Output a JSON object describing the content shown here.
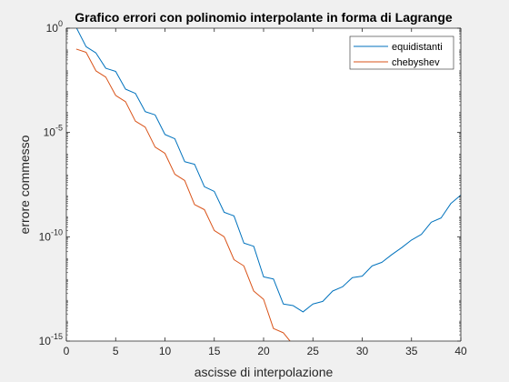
{
  "chart_data": {
    "type": "line",
    "title": "Grafico errori con polinomio interpolante in forma di Lagrange",
    "xlabel": "ascisse di interpolazione",
    "ylabel": "errore commesso",
    "xlim": [
      0,
      40
    ],
    "ylim": [
      1e-15,
      1
    ],
    "yscale": "log",
    "grid": false,
    "legend_location": "top-right",
    "xticks": [
      0,
      5,
      10,
      15,
      20,
      25,
      30,
      35,
      40
    ],
    "xtick_labels": [
      "0",
      "5",
      "10",
      "15",
      "20",
      "25",
      "30",
      "35",
      "40"
    ],
    "yticks": [
      1e-15,
      1e-10,
      1e-05,
      1
    ],
    "ytick_labels": [
      {
        "base": "10",
        "exp": "-15"
      },
      {
        "base": "10",
        "exp": "-10"
      },
      {
        "base": "10",
        "exp": "-5"
      },
      {
        "base": "10",
        "exp": "0"
      }
    ],
    "x": [
      1,
      2,
      3,
      4,
      5,
      6,
      7,
      8,
      9,
      10,
      11,
      12,
      13,
      14,
      15,
      16,
      17,
      18,
      19,
      20,
      21,
      22,
      23,
      24,
      25,
      26,
      27,
      28,
      29,
      30,
      31,
      32,
      33,
      34,
      35,
      36,
      37,
      38,
      39,
      40
    ],
    "series": [
      {
        "name": "equidistanti",
        "color": "#0072bd",
        "values": [
          1.1,
          0.13,
          0.065,
          0.012,
          0.0085,
          0.0012,
          0.00075,
          0.0001,
          7e-05,
          8e-06,
          5e-06,
          4e-07,
          3e-07,
          2.5e-08,
          1.5e-08,
          1.5e-09,
          1e-09,
          5e-11,
          3.5e-11,
          1.2e-12,
          9.5e-13,
          6e-14,
          5e-14,
          2.5e-14,
          6e-14,
          8e-14,
          2.5e-13,
          4e-13,
          1.1e-12,
          1.3e-12,
          4e-12,
          6e-12,
          1.4e-11,
          3e-11,
          7e-11,
          1.3e-10,
          5e-10,
          8e-10,
          4e-09,
          1e-08
        ]
      },
      {
        "name": "chebyshev",
        "color": "#d95319",
        "values": [
          0.1,
          0.07,
          0.009,
          0.0045,
          0.0006,
          0.0003,
          3.5e-05,
          1.8e-05,
          2e-06,
          1e-06,
          1e-07,
          5e-08,
          3.5e-09,
          2e-09,
          2e-10,
          1e-10,
          8e-12,
          4e-12,
          2.5e-13,
          1e-13,
          4e-15,
          2.5e-15,
          6.5e-16,
          7e-16,
          6e-16,
          6.5e-16,
          7.5e-16,
          7.5e-16,
          7e-16,
          6.5e-16,
          7e-16,
          7.5e-16,
          6.5e-16,
          7e-16,
          7.5e-16,
          7e-16,
          7.5e-16,
          8e-16,
          9e-16,
          9.5e-16
        ]
      }
    ]
  }
}
